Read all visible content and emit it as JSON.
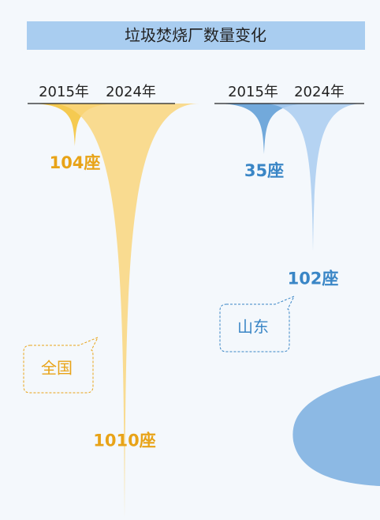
{
  "title": "垃圾焚烧厂数量变化",
  "chart_data": [
    {
      "type": "spike",
      "label": "全国",
      "categories": [
        "2015年",
        "2024年"
      ],
      "values": [
        104,
        1010
      ],
      "value_labels": [
        "104座",
        "1010座"
      ],
      "colors": [
        "#f5c232",
        "#f9d67c"
      ],
      "label_color": "#e8a317"
    },
    {
      "type": "spike",
      "label": "山东",
      "categories": [
        "2015年",
        "2024年"
      ],
      "values": [
        35,
        102
      ],
      "value_labels": [
        "35座",
        "102座"
      ],
      "colors": [
        "#5b9bd5",
        "#a9cdf0"
      ],
      "label_color": "#3a86c6"
    }
  ]
}
